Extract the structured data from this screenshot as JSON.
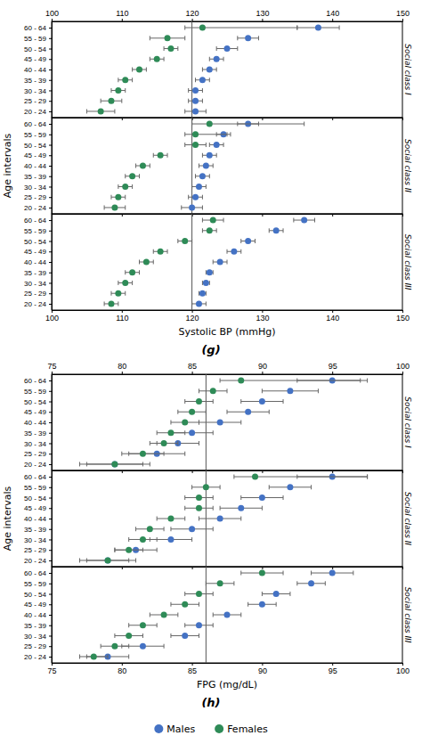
{
  "chart_data": [
    {
      "type": "dot",
      "title": "(g)",
      "xlabel": "Systolic BP (mmHg)",
      "ylabel": "Age intervals",
      "xlim": [
        100,
        150
      ],
      "xticks": [
        100,
        110,
        120,
        130,
        140,
        150
      ],
      "reference_line": 120,
      "categories": [
        "20 - 24",
        "25 - 29",
        "30 - 34",
        "35 - 39",
        "40 - 44",
        "45 - 49",
        "50 - 54",
        "55 - 59",
        "60 - 64"
      ],
      "panels": [
        {
          "title": "Social class I",
          "series": [
            {
              "name": "Males",
              "color": "#4472C4",
              "values": [
                120.5,
                120.5,
                120.5,
                121.5,
                122.5,
                123.5,
                125.0,
                128.0,
                138.0
              ],
              "lower": [
                119.0,
                119.5,
                119.5,
                120.5,
                121.5,
                122.5,
                123.5,
                126.5,
                135.0
              ],
              "upper": [
                122.0,
                121.5,
                121.5,
                122.5,
                123.5,
                124.5,
                126.5,
                129.5,
                141.0
              ]
            },
            {
              "name": "Females",
              "color": "#2E8B57",
              "values": [
                107.0,
                108.5,
                109.5,
                110.5,
                112.5,
                115.0,
                117.0,
                116.5,
                121.5
              ],
              "lower": [
                105.0,
                107.0,
                108.5,
                109.5,
                111.5,
                114.0,
                116.0,
                114.0,
                119.0
              ],
              "upper": [
                109.0,
                110.0,
                110.5,
                111.5,
                113.5,
                116.0,
                118.0,
                119.0,
                135.0
              ]
            }
          ]
        },
        {
          "title": "Social class II",
          "series": [
            {
              "name": "Males",
              "color": "#4472C4",
              "values": [
                120.0,
                120.5,
                121.0,
                121.5,
                122.0,
                122.5,
                123.5,
                124.5,
                128.0
              ],
              "lower": [
                118.5,
                119.5,
                120.0,
                120.5,
                121.0,
                121.5,
                122.5,
                123.5,
                126.5
              ],
              "upper": [
                121.5,
                121.5,
                122.0,
                122.5,
                123.0,
                123.5,
                124.5,
                125.5,
                129.5
              ]
            },
            {
              "name": "Females",
              "color": "#2E8B57",
              "values": [
                109.0,
                109.5,
                110.5,
                111.5,
                113.0,
                115.5,
                120.5,
                120.5,
                122.5
              ],
              "lower": [
                107.5,
                108.5,
                109.5,
                110.5,
                112.0,
                114.5,
                119.0,
                119.0,
                120.0
              ],
              "upper": [
                110.5,
                110.5,
                111.5,
                112.5,
                114.0,
                116.5,
                122.0,
                125.0,
                136.0
              ]
            }
          ]
        },
        {
          "title": "Social class III",
          "series": [
            {
              "name": "Males",
              "color": "#4472C4",
              "values": [
                121.0,
                121.5,
                122.0,
                122.5,
                124.0,
                126.0,
                128.0,
                132.0,
                136.0
              ],
              "lower": [
                120.0,
                121.0,
                121.5,
                122.0,
                123.0,
                125.0,
                127.0,
                131.0,
                134.5
              ],
              "upper": [
                122.0,
                122.0,
                122.5,
                123.0,
                125.0,
                127.0,
                129.0,
                133.0,
                137.5
              ]
            },
            {
              "name": "Females",
              "color": "#2E8B57",
              "values": [
                108.5,
                109.5,
                110.5,
                111.5,
                113.5,
                115.5,
                119.0,
                122.5,
                123.0
              ],
              "lower": [
                107.5,
                108.5,
                109.5,
                110.5,
                112.5,
                114.5,
                118.0,
                121.5,
                121.5
              ],
              "upper": [
                109.5,
                110.5,
                111.5,
                112.5,
                114.5,
                116.5,
                120.0,
                123.5,
                124.5
              ]
            }
          ]
        }
      ]
    },
    {
      "type": "dot",
      "title": "(h)",
      "xlabel": "FPG (mg/dL)",
      "ylabel": "Age intervals",
      "xlim": [
        75,
        100
      ],
      "xticks": [
        75,
        80,
        85,
        90,
        95,
        100
      ],
      "reference_line": 86,
      "legend": "bottom",
      "categories": [
        "20 - 24",
        "25 - 29",
        "30 - 34",
        "35 - 39",
        "40 - 44",
        "45 - 49",
        "50 - 54",
        "55 - 59",
        "60 - 64"
      ],
      "panels": [
        {
          "title": "Social class I",
          "series": [
            {
              "name": "Males",
              "color": "#4472C4",
              "values": [
                79.5,
                82.5,
                84.0,
                85.0,
                87.0,
                89.0,
                90.0,
                92.0,
                95.0
              ],
              "lower": [
                77.5,
                80.5,
                82.5,
                83.5,
                85.5,
                87.5,
                88.5,
                90.0,
                92.5
              ],
              "upper": [
                81.5,
                84.5,
                85.5,
                86.5,
                88.5,
                90.5,
                91.5,
                94.0,
                97.5
              ]
            },
            {
              "name": "Females",
              "color": "#2E8B57",
              "values": [
                79.5,
                81.5,
                83.0,
                83.5,
                84.5,
                85.0,
                85.5,
                86.5,
                88.5
              ],
              "lower": [
                77.0,
                80.0,
                82.0,
                82.5,
                83.5,
                84.0,
                84.5,
                85.5,
                87.0
              ],
              "upper": [
                82.0,
                83.0,
                84.0,
                84.5,
                85.5,
                86.0,
                86.5,
                87.5,
                97.0
              ]
            }
          ]
        },
        {
          "title": "Social class II",
          "series": [
            {
              "name": "Males",
              "color": "#4472C4",
              "values": [
                79.0,
                81.0,
                83.5,
                85.0,
                87.0,
                88.5,
                90.0,
                92.0,
                95.0
              ],
              "lower": [
                77.0,
                79.5,
                82.0,
                83.5,
                85.5,
                87.0,
                88.5,
                90.5,
                92.5
              ],
              "upper": [
                81.0,
                82.5,
                85.0,
                86.5,
                88.5,
                90.0,
                91.5,
                93.5,
                97.5
              ]
            },
            {
              "name": "Females",
              "color": "#2E8B57",
              "values": [
                79.0,
                80.5,
                81.5,
                82.0,
                83.5,
                85.5,
                85.5,
                86.0,
                89.5
              ],
              "lower": [
                77.5,
                79.5,
                80.5,
                81.0,
                82.5,
                84.5,
                84.5,
                85.0,
                88.0
              ],
              "upper": [
                80.5,
                81.5,
                82.5,
                83.0,
                84.5,
                86.5,
                86.5,
                87.0,
                97.5
              ]
            }
          ]
        },
        {
          "title": "Social class III",
          "series": [
            {
              "name": "Males",
              "color": "#4472C4",
              "values": [
                79.0,
                81.5,
                84.5,
                85.5,
                87.5,
                90.0,
                91.0,
                93.5,
                95.0
              ],
              "lower": [
                77.5,
                80.0,
                83.5,
                84.5,
                86.5,
                89.0,
                90.0,
                92.5,
                93.5
              ],
              "upper": [
                80.5,
                83.0,
                85.5,
                86.5,
                88.5,
                91.0,
                92.0,
                94.5,
                96.5
              ]
            },
            {
              "name": "Females",
              "color": "#2E8B57",
              "values": [
                78.0,
                79.5,
                80.5,
                81.5,
                83.0,
                84.5,
                85.5,
                87.0,
                90.0
              ],
              "lower": [
                77.0,
                78.5,
                79.5,
                80.5,
                82.0,
                83.5,
                84.5,
                86.0,
                88.5
              ],
              "upper": [
                79.0,
                80.5,
                81.5,
                82.5,
                84.0,
                85.5,
                86.5,
                88.0,
                91.5
              ]
            }
          ]
        }
      ]
    }
  ]
}
